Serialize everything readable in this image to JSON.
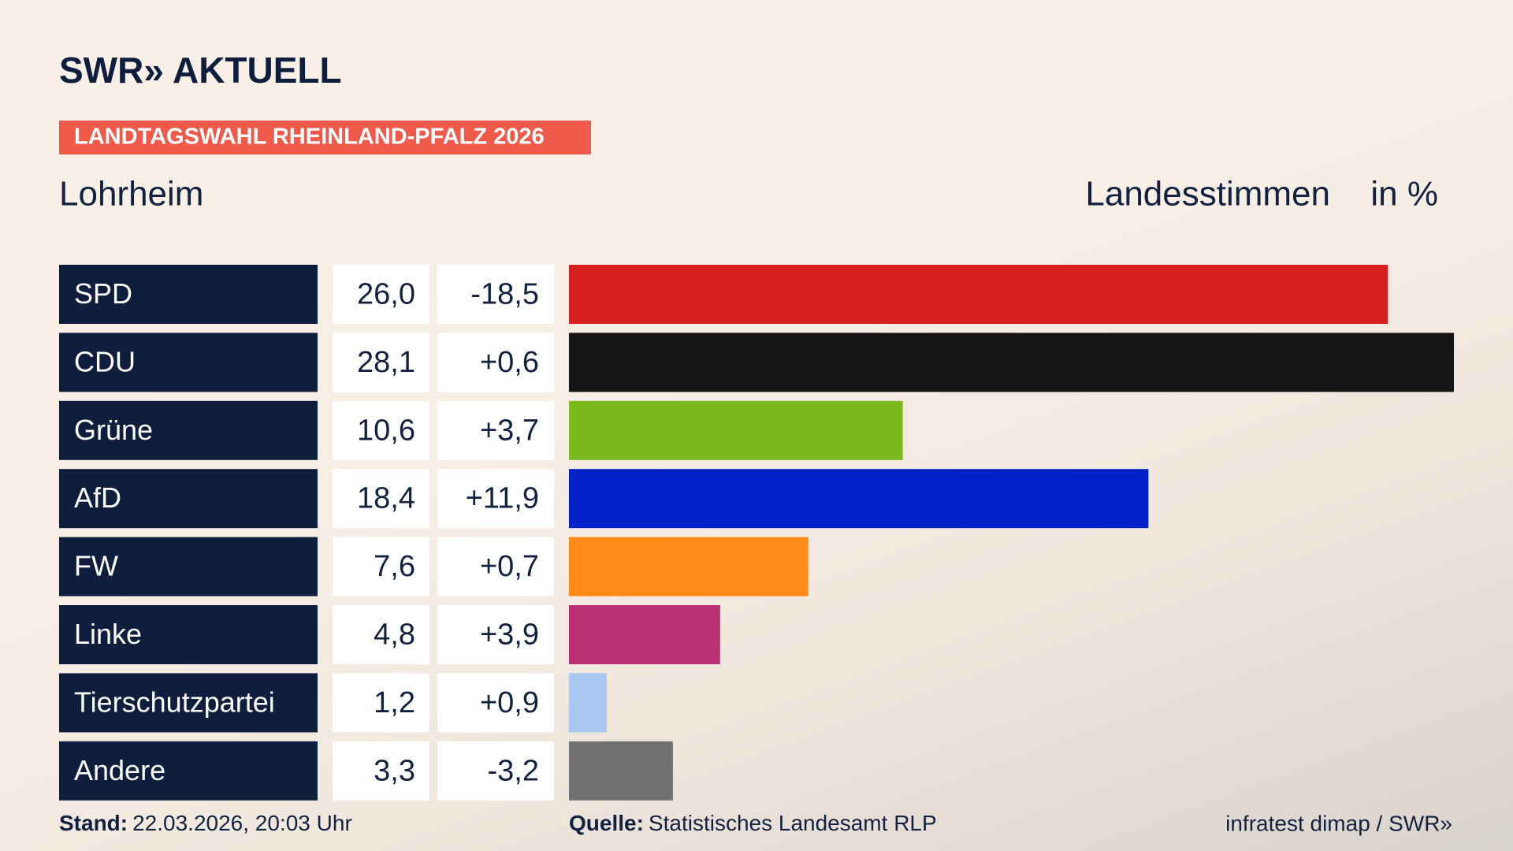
{
  "header": {
    "brand": "SWR» AKTUELL"
  },
  "chart_data": {
    "type": "bar",
    "title": "LANDTAGSWAHL RHEINLAND-PFALZ 2026",
    "subtitle": "Lohrheim",
    "x_label": "Landesstimmen",
    "unit_label": "in %",
    "categories": [
      "SPD",
      "CDU",
      "Grüne",
      "AfD",
      "FW",
      "Linke",
      "Tierschutzpartei",
      "Andere"
    ],
    "values": [
      26.0,
      28.1,
      10.6,
      18.4,
      7.6,
      4.8,
      1.2,
      3.3
    ],
    "value_labels": [
      "26,0",
      "28,1",
      "10,6",
      "18,4",
      "7,6",
      "4,8",
      "1,2",
      "3,3"
    ],
    "changes": [
      -18.5,
      0.6,
      3.7,
      11.9,
      0.7,
      3.9,
      0.9,
      -3.2
    ],
    "change_labels": [
      "-18,5",
      "+0,6",
      "+3,7",
      "+11,9",
      "+0,7",
      "+3,9",
      "+0,9",
      "-3,2"
    ],
    "colors": [
      "#d61f1f",
      "#141414",
      "#7aba1e",
      "#0022c8",
      "#ff8a18",
      "#bb3073",
      "#a9c8ef",
      "#717171"
    ]
  },
  "footer": {
    "stand_label": "Stand:",
    "stand": "22.03.2026, 20:03 Uhr",
    "source_label": "Quelle:",
    "source": "Statistisches Landesamt RLP",
    "credit": "infratest dimap / SWR»"
  }
}
